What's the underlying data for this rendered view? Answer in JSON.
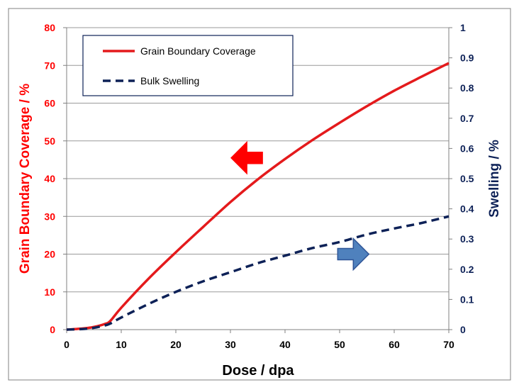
{
  "chart_data": {
    "type": "line",
    "title": "",
    "xlabel": "Dose / dpa",
    "ylabel_left": "Grain Boundary Coverage / %",
    "ylabel_right": "Swelling / %",
    "xlim": [
      0,
      70
    ],
    "ylim_left": [
      0,
      80
    ],
    "ylim_right": [
      0,
      1
    ],
    "x_ticks": [
      0,
      10,
      20,
      30,
      40,
      50,
      60,
      70
    ],
    "y_left_ticks": [
      0,
      10,
      20,
      30,
      40,
      50,
      60,
      70,
      80
    ],
    "y_right_ticks": [
      0,
      0.1,
      0.2,
      0.3,
      0.4,
      0.5,
      0.6,
      0.7,
      0.8,
      0.9,
      1
    ],
    "y_right_tick_labels": [
      "0",
      "0.1",
      "0.2",
      "0.3",
      "0.4",
      "0.5",
      "0.6",
      "0.7",
      "0.8",
      "0.9",
      "1"
    ],
    "grid": "horizontal",
    "legend_position": "top-left",
    "series": [
      {
        "name": "Grain Boundary Coverage",
        "axis": "left",
        "color": "#e41a1c",
        "style": "solid",
        "x": [
          0,
          3,
          5,
          7,
          8,
          10,
          15,
          20,
          25,
          30,
          35,
          40,
          45,
          50,
          55,
          60,
          65,
          70
        ],
        "y": [
          0,
          0.3,
          0.7,
          1.5,
          2.3,
          5.8,
          13.5,
          20.5,
          27.2,
          33.8,
          39.8,
          45.2,
          50.2,
          54.8,
          59.2,
          63.3,
          67.0,
          70.6
        ]
      },
      {
        "name": "Bulk Swelling",
        "axis": "right",
        "color": "#0d2157",
        "style": "dashed",
        "x": [
          0,
          3,
          5,
          7,
          8,
          10,
          15,
          20,
          25,
          30,
          35,
          40,
          45,
          50,
          55,
          60,
          65,
          70
        ],
        "y": [
          0,
          0.002,
          0.006,
          0.014,
          0.02,
          0.04,
          0.085,
          0.125,
          0.16,
          0.19,
          0.22,
          0.245,
          0.27,
          0.29,
          0.315,
          0.335,
          0.353,
          0.375
        ]
      }
    ],
    "annotations": [
      {
        "type": "arrow",
        "direction": "left",
        "color": "#ff0000",
        "points_to": "left axis",
        "x": 33,
        "y_left": 45.5
      },
      {
        "type": "arrow",
        "direction": "right",
        "color": "#4f81bd",
        "points_to": "right axis",
        "x": 52.5,
        "y_left": 20
      }
    ],
    "colors": {
      "left_axis": "#ff0000",
      "right_axis": "#0d2157",
      "gridline": "#9a9a9a",
      "frame": "#808080",
      "axis_text": "#000000"
    }
  }
}
